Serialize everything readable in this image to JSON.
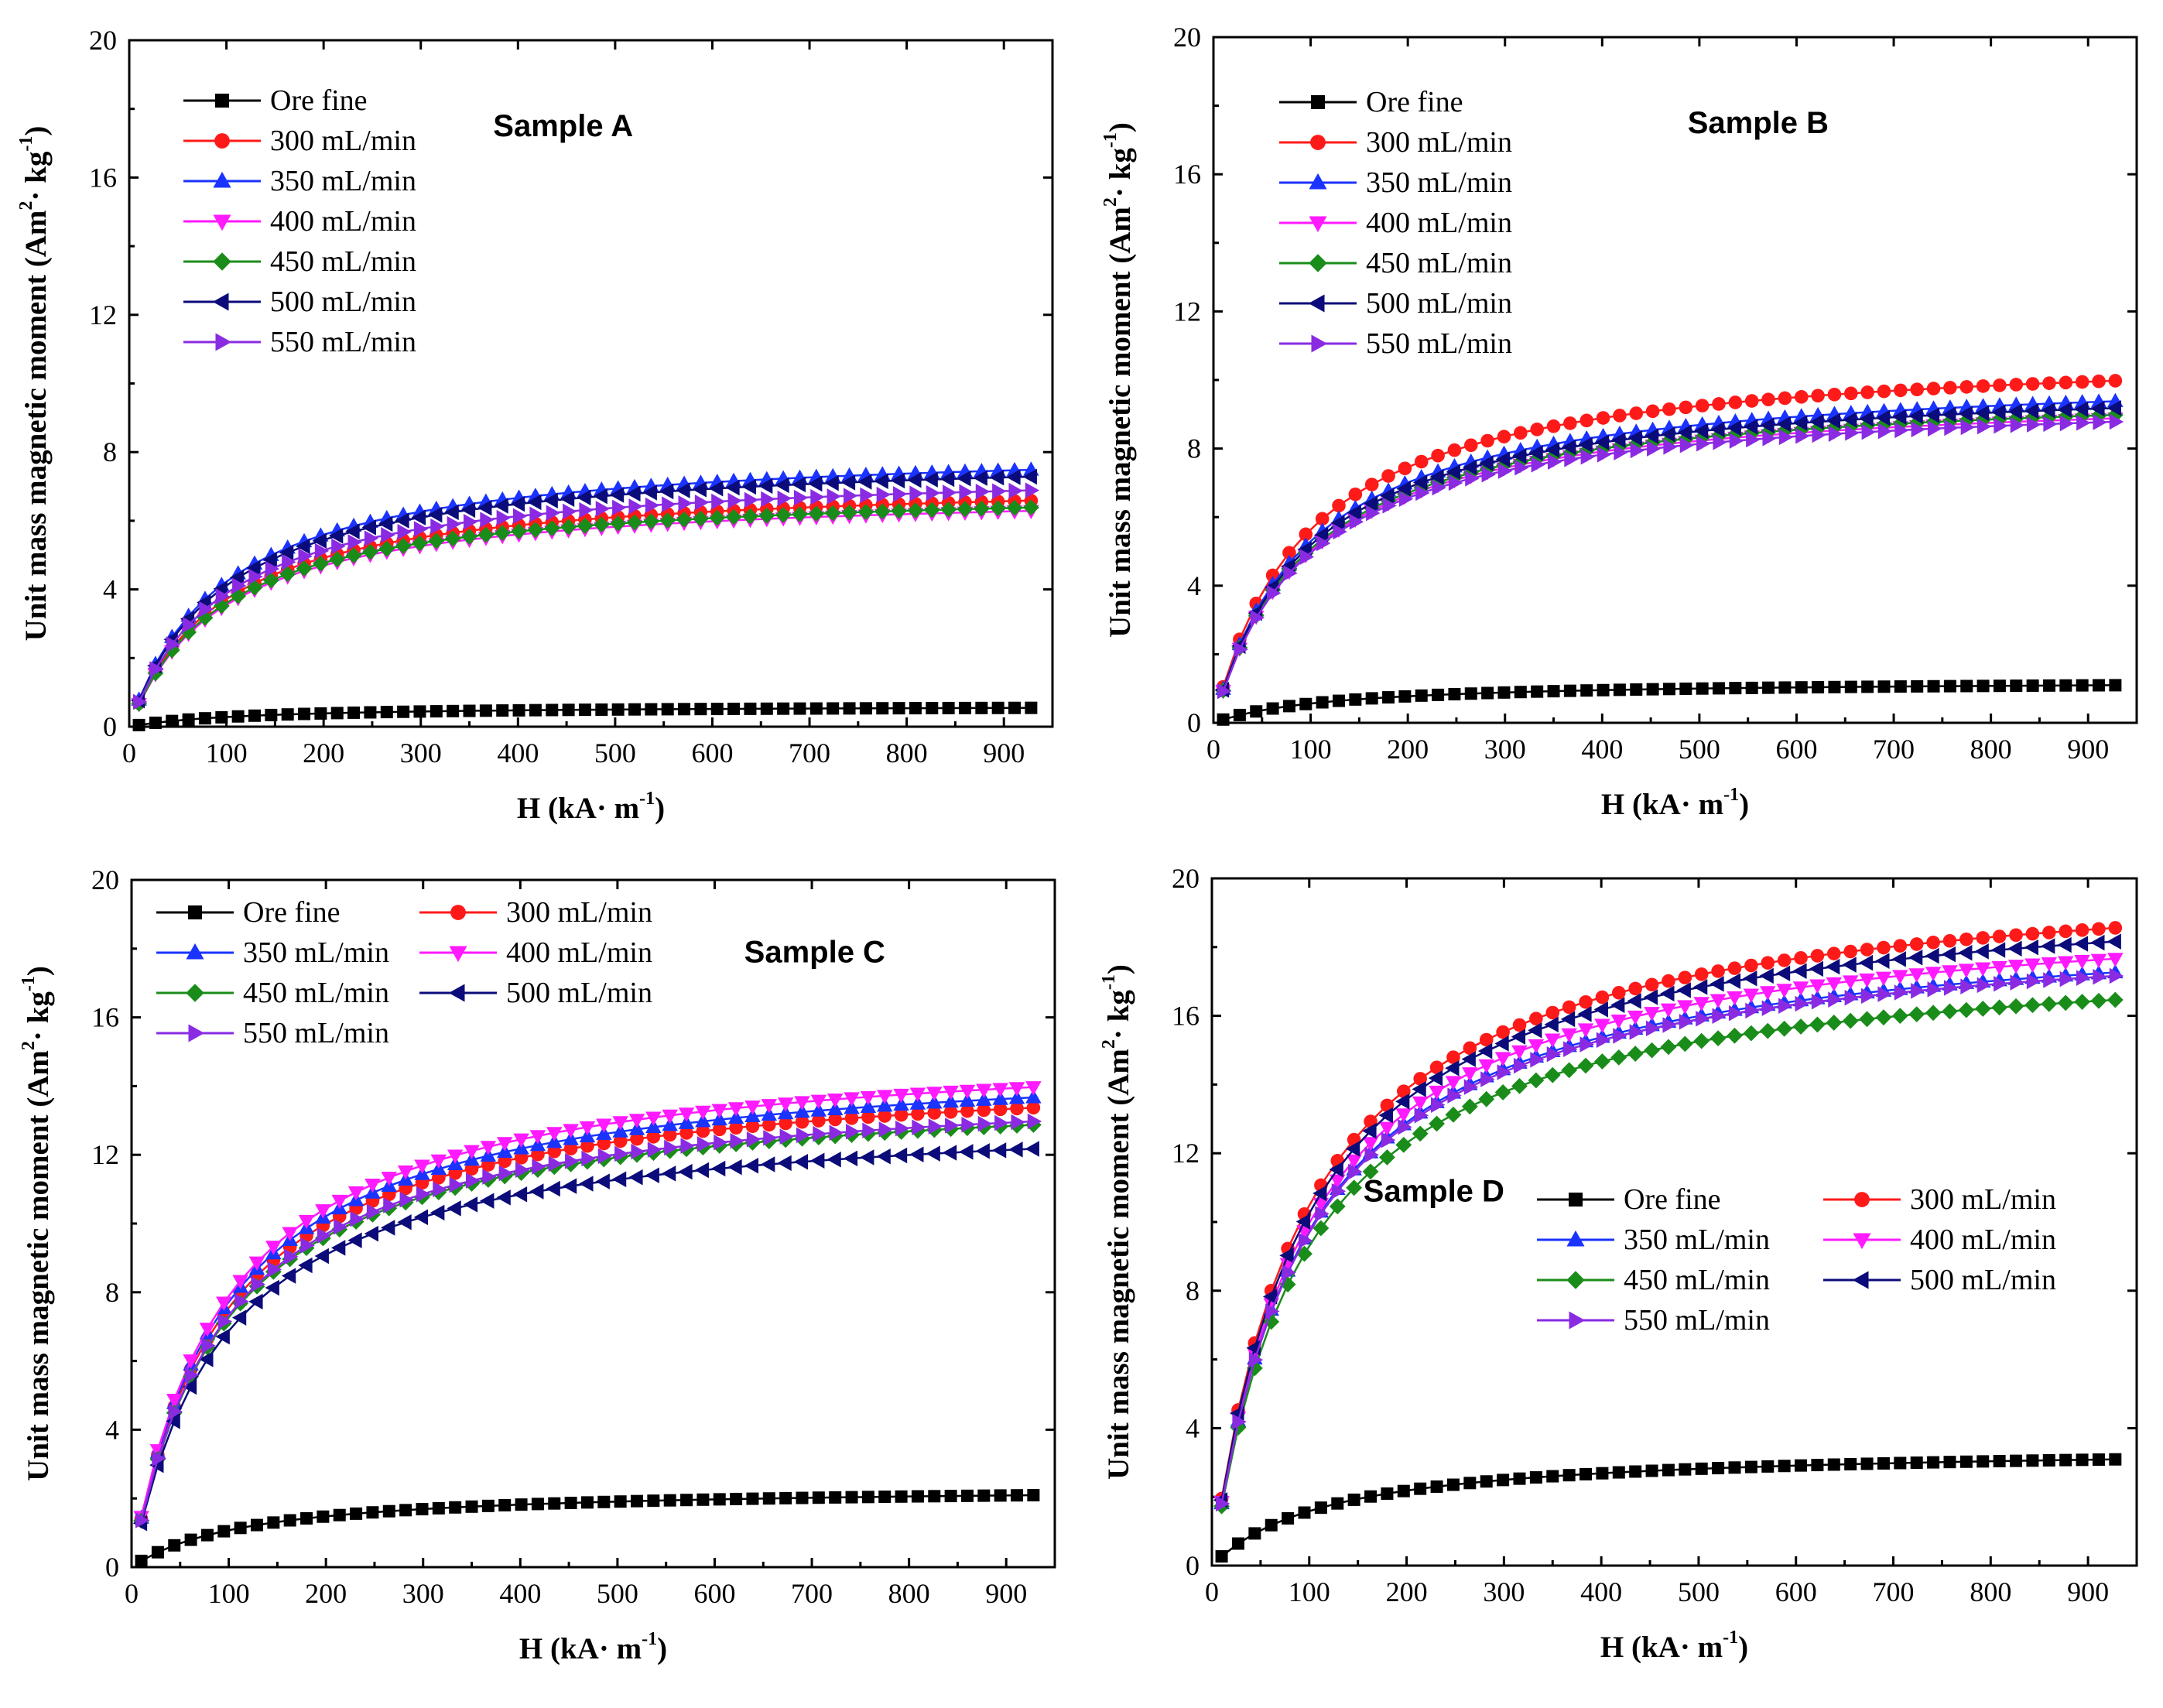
{
  "figure": {
    "y_label": "Unit mass magnetic moment (Am",
    "y_label_unit": "· kg",
    "y_label_exp1": "2",
    "y_label_exp2": "-1",
    "y_label_close": ")",
    "x_label": "H (kA· m",
    "x_label_exp": "-1",
    "x_label_close": ")"
  },
  "series_styles": [
    {
      "name": "Ore fine",
      "color": "#000000",
      "marker": "square"
    },
    {
      "name": "300 mL/min",
      "color": "#ff1a1a",
      "marker": "circle"
    },
    {
      "name": "350 mL/min",
      "color": "#1a33ff",
      "marker": "triangle-up"
    },
    {
      "name": "400 mL/min",
      "color": "#ff1aff",
      "marker": "triangle-down"
    },
    {
      "name": "450 mL/min",
      "color": "#1a8c1a",
      "marker": "diamond"
    },
    {
      "name": "500 mL/min",
      "color": "#0b0b7a",
      "marker": "triangle-left"
    },
    {
      "name": "550 mL/min",
      "color": "#8a2be2",
      "marker": "triangle-right"
    }
  ],
  "chart_data": [
    {
      "type": "line",
      "title": "Sample A",
      "xlabel": "H (kA· m-1)",
      "ylabel": "Unit mass magnetic moment (Am2· kg-1)",
      "xlim": [
        0,
        950
      ],
      "ylim": [
        0,
        20
      ],
      "xticks": [
        0,
        100,
        200,
        300,
        400,
        500,
        600,
        700,
        800,
        900
      ],
      "yticks": [
        0,
        4,
        8,
        12,
        16,
        20
      ],
      "legend_position": "top-left",
      "legend_columns": 1,
      "series": [
        {
          "name": "Ore fine",
          "saturation": 0.55
        },
        {
          "name": "300 mL/min",
          "saturation": 6.6
        },
        {
          "name": "350 mL/min",
          "saturation": 7.5
        },
        {
          "name": "400 mL/min",
          "saturation": 6.3
        },
        {
          "name": "450 mL/min",
          "saturation": 6.4
        },
        {
          "name": "500 mL/min",
          "saturation": 7.3
        },
        {
          "name": "550 mL/min",
          "saturation": 6.9
        }
      ]
    },
    {
      "type": "line",
      "title": "Sample B",
      "xlabel": "H (kA· m-1)",
      "ylabel": "Unit mass magnetic moment (Am2· kg-1)",
      "xlim": [
        0,
        950
      ],
      "ylim": [
        0,
        20
      ],
      "xticks": [
        0,
        100,
        200,
        300,
        400,
        500,
        600,
        700,
        800,
        900
      ],
      "yticks": [
        0,
        4,
        8,
        12,
        16,
        20
      ],
      "legend_position": "top-left",
      "legend_columns": 1,
      "series": [
        {
          "name": "Ore fine",
          "saturation": 1.1
        },
        {
          "name": "300 mL/min",
          "saturation": 10.0
        },
        {
          "name": "350 mL/min",
          "saturation": 9.4
        },
        {
          "name": "400 mL/min",
          "saturation": 8.9
        },
        {
          "name": "450 mL/min",
          "saturation": 9.0
        },
        {
          "name": "500 mL/min",
          "saturation": 9.2
        },
        {
          "name": "550 mL/min",
          "saturation": 8.8
        }
      ]
    },
    {
      "type": "line",
      "title": "Sample C",
      "xlabel": "H (kA· m-1)",
      "ylabel": "Unit mass magnetic moment (Am2· kg-1)",
      "xlim": [
        0,
        950
      ],
      "ylim": [
        0,
        20
      ],
      "xticks": [
        0,
        100,
        200,
        300,
        400,
        500,
        600,
        700,
        800,
        900
      ],
      "yticks": [
        0,
        4,
        8,
        12,
        16,
        20
      ],
      "legend_position": "top-left",
      "legend_columns": 2,
      "series": [
        {
          "name": "Ore fine",
          "saturation": 2.1
        },
        {
          "name": "300 mL/min",
          "saturation": 13.4
        },
        {
          "name": "350 mL/min",
          "saturation": 13.7
        },
        {
          "name": "400 mL/min",
          "saturation": 14.0
        },
        {
          "name": "450 mL/min",
          "saturation": 12.9
        },
        {
          "name": "500 mL/min",
          "saturation": 12.2
        },
        {
          "name": "550 mL/min",
          "saturation": 13.0
        }
      ]
    },
    {
      "type": "line",
      "title": "Sample D",
      "xlabel": "H (kA· m-1)",
      "ylabel": "Unit mass magnetic moment (Am2· kg-1)",
      "xlim": [
        0,
        950
      ],
      "ylim": [
        0,
        20
      ],
      "xticks": [
        0,
        100,
        200,
        300,
        400,
        500,
        600,
        700,
        800,
        900
      ],
      "yticks": [
        0,
        4,
        8,
        12,
        16,
        20
      ],
      "legend_position": "center-right",
      "legend_columns": 2,
      "series": [
        {
          "name": "Ore fine",
          "saturation": 3.1
        },
        {
          "name": "300 mL/min",
          "saturation": 18.6
        },
        {
          "name": "350 mL/min",
          "saturation": 17.3
        },
        {
          "name": "400 mL/min",
          "saturation": 17.7
        },
        {
          "name": "450 mL/min",
          "saturation": 16.5
        },
        {
          "name": "500 mL/min",
          "saturation": 18.2
        },
        {
          "name": "550 mL/min",
          "saturation": 17.2
        }
      ]
    }
  ]
}
